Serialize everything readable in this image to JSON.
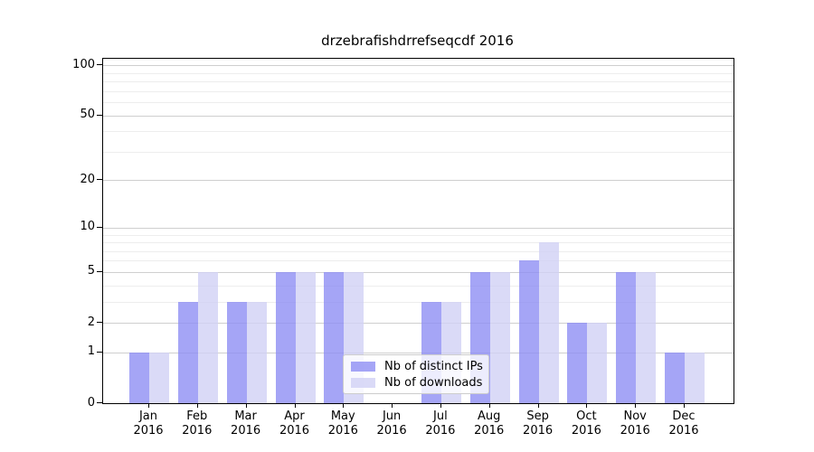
{
  "chart_data": {
    "type": "bar",
    "title": "drzebrafishdrrefseqcdf 2016",
    "categories": [
      "Jan 2016",
      "Feb 2016",
      "Mar 2016",
      "Apr 2016",
      "May 2016",
      "Jun 2016",
      "Jul 2016",
      "Aug 2016",
      "Sep 2016",
      "Oct 2016",
      "Nov 2016",
      "Dec 2016"
    ],
    "series": [
      {
        "name": "Nb of distinct IPs",
        "color": "#8c8cf3",
        "alpha": 0.78,
        "values": [
          1,
          3,
          3,
          5,
          5,
          0,
          3,
          5,
          6,
          2,
          5,
          1
        ]
      },
      {
        "name": "Nb of downloads",
        "color": "#d0d0f5",
        "alpha": 0.78,
        "values": [
          1,
          5,
          3,
          5,
          5,
          0,
          3,
          5,
          8,
          2,
          5,
          1
        ]
      }
    ],
    "y_axis": {
      "scale": "log1p",
      "range": [
        0,
        100
      ],
      "major_ticks": [
        0,
        1,
        2,
        5,
        10,
        20,
        50,
        100
      ],
      "minor_gridlines": [
        3,
        4,
        6,
        7,
        8,
        9,
        30,
        40,
        60,
        70,
        80,
        90
      ]
    },
    "x_axis": {
      "label_lines": 2
    },
    "grid": true,
    "legend": {
      "position": "lower center"
    },
    "colors": {
      "major_grid": "#cfcfcf",
      "minor_grid": "#ededed",
      "spine": "#000000",
      "background": "#ffffff"
    }
  }
}
